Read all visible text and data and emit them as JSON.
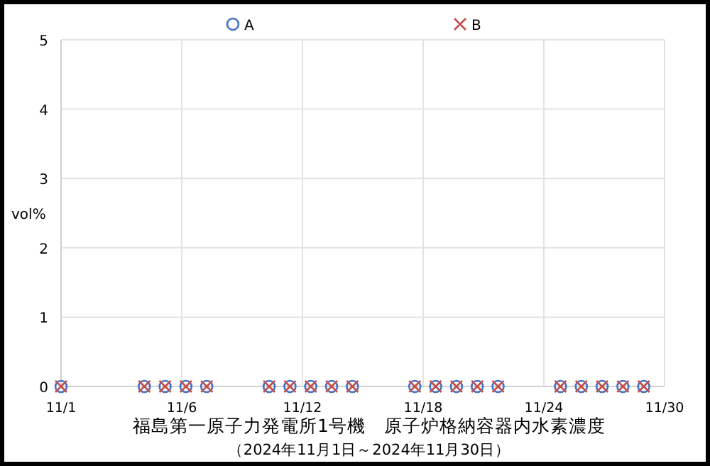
{
  "chart_data": {
    "type": "scatter",
    "title": "福島第一原子力発電所1号機　原子炉格納容器内水素濃度",
    "subtitle": "（2024年11月1日～2024年11月30日）",
    "ylabel": "vol%",
    "x": [
      "2024-11-01",
      "2024-11-05",
      "2024-11-06",
      "2024-11-07",
      "2024-11-08",
      "2024-11-11",
      "2024-11-12",
      "2024-11-13",
      "2024-11-14",
      "2024-11-15",
      "2024-11-18",
      "2024-11-19",
      "2024-11-20",
      "2024-11-21",
      "2024-11-22",
      "2024-11-25",
      "2024-11-26",
      "2024-11-27",
      "2024-11-28",
      "2024-11-29"
    ],
    "series": [
      {
        "name": "A",
        "color": "#4472c4",
        "marker": "circle",
        "values": [
          0,
          0,
          0,
          0,
          0,
          0,
          0,
          0,
          0,
          0,
          0,
          0,
          0,
          0,
          0,
          0,
          0,
          0,
          0,
          0
        ]
      },
      {
        "name": "B",
        "color": "#c0504d",
        "marker": "cross",
        "values": [
          0,
          0,
          0,
          0,
          0,
          0,
          0,
          0,
          0,
          0,
          0,
          0,
          0,
          0,
          0,
          0,
          0,
          0,
          0,
          0
        ]
      }
    ],
    "xlim": [
      "2024-11-01",
      "2024-11-30"
    ],
    "xticks": [
      {
        "value": "2024-11-01",
        "label": "11/1"
      },
      {
        "value": "2024-11-06T19:12",
        "label": "11/6"
      },
      {
        "value": "2024-11-12T14:24",
        "label": "11/12"
      },
      {
        "value": "2024-11-18T09:36",
        "label": "11/18"
      },
      {
        "value": "2024-11-24T04:48",
        "label": "11/24"
      },
      {
        "value": "2024-11-30",
        "label": "11/30"
      }
    ],
    "ylim": [
      0,
      5
    ],
    "yticks": [
      0,
      1,
      2,
      3,
      4,
      5
    ],
    "grid": true,
    "legend": "top"
  }
}
